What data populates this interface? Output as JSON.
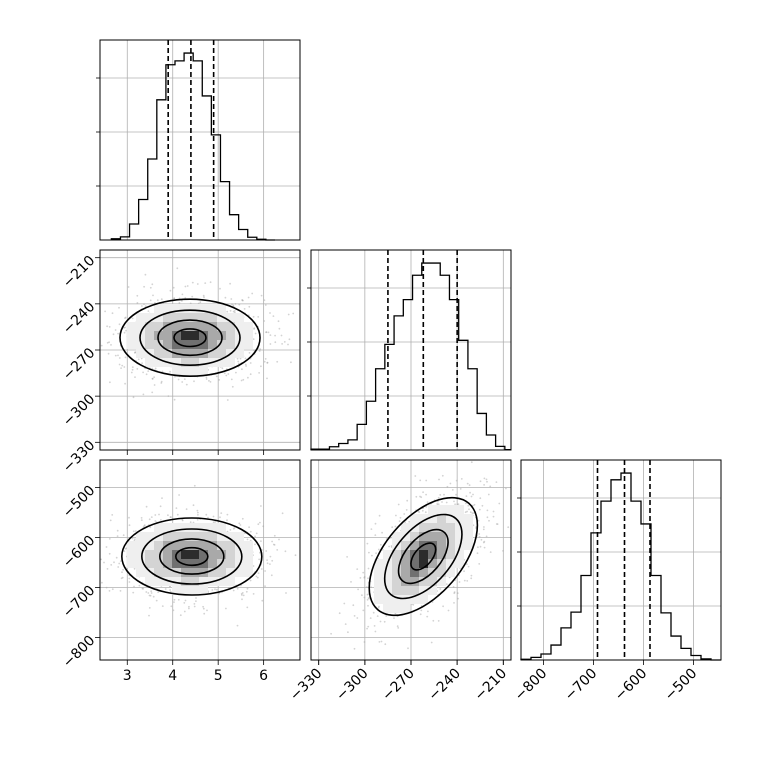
{
  "chart_data": {
    "type": "corner",
    "parameters": [
      {
        "ticks": [
          3,
          4,
          5,
          6
        ],
        "range": [
          2.4,
          6.8
        ],
        "quantiles": [
          3.9,
          4.4,
          4.9
        ]
      },
      {
        "ticks": [
          -210,
          -240,
          -270,
          -300,
          -330
        ],
        "range": [
          -335,
          -205
        ],
        "quantiles": [
          -285,
          -262,
          -240
        ]
      },
      {
        "ticks": [
          -500,
          -600,
          -700,
          -800
        ],
        "range": [
          -845,
          -445
        ],
        "quantiles": [
          -692,
          -638,
          -587
        ]
      }
    ],
    "histograms": [
      {
        "parameter": 0,
        "bin_edges": [
          2.65,
          2.85,
          3.05,
          3.25,
          3.45,
          3.65,
          3.85,
          4.05,
          4.25,
          4.45,
          4.65,
          4.85,
          5.05,
          5.25,
          5.45,
          5.65,
          5.85,
          6.05,
          6.25
        ],
        "counts": [
          0.3,
          0.8,
          4.1,
          10.4,
          20.8,
          36,
          45,
          46,
          48,
          46,
          37,
          27,
          15,
          6.5,
          2.7,
          0.7,
          0.2,
          0
        ]
      },
      {
        "parameter": 1,
        "bin_edges": [
          -335,
          -329,
          -323,
          -317,
          -311,
          -305,
          -299,
          -293,
          -287,
          -281,
          -275,
          -269,
          -263,
          -257,
          -251,
          -245,
          -239,
          -233,
          -227,
          -221,
          -215,
          -209,
          -205
        ],
        "counts": [
          0.2,
          0.2,
          0.8,
          1.6,
          2.5,
          6.3,
          12,
          20,
          26,
          33,
          37,
          43,
          46,
          46,
          43,
          37,
          27,
          20,
          9,
          3.7,
          0.9,
          0.1
        ]
      },
      {
        "parameter": 2,
        "bin_edges": [
          -845,
          -825,
          -805,
          -785,
          -765,
          -745,
          -725,
          -705,
          -685,
          -665,
          -645,
          -625,
          -605,
          -585,
          -565,
          -545,
          -525,
          -505,
          -485,
          -465,
          -445
        ],
        "counts": [
          0.2,
          0.7,
          1.6,
          4,
          8.6,
          12.8,
          22.6,
          34,
          42.5,
          48.2,
          50,
          42.5,
          36.4,
          22.6,
          12.6,
          6.4,
          3.1,
          1.2,
          0.3,
          0
        ]
      }
    ],
    "density_panels": [
      {
        "x": 0,
        "y": 1,
        "center": [
          4.38,
          -262
        ],
        "slope": -0.055
      },
      {
        "x": 0,
        "y": 2,
        "center": [
          4.42,
          -638
        ],
        "slope": -0.2
      },
      {
        "x": 1,
        "y": 2,
        "center": [
          -262,
          -638
        ],
        "slope": 3.6
      }
    ]
  }
}
